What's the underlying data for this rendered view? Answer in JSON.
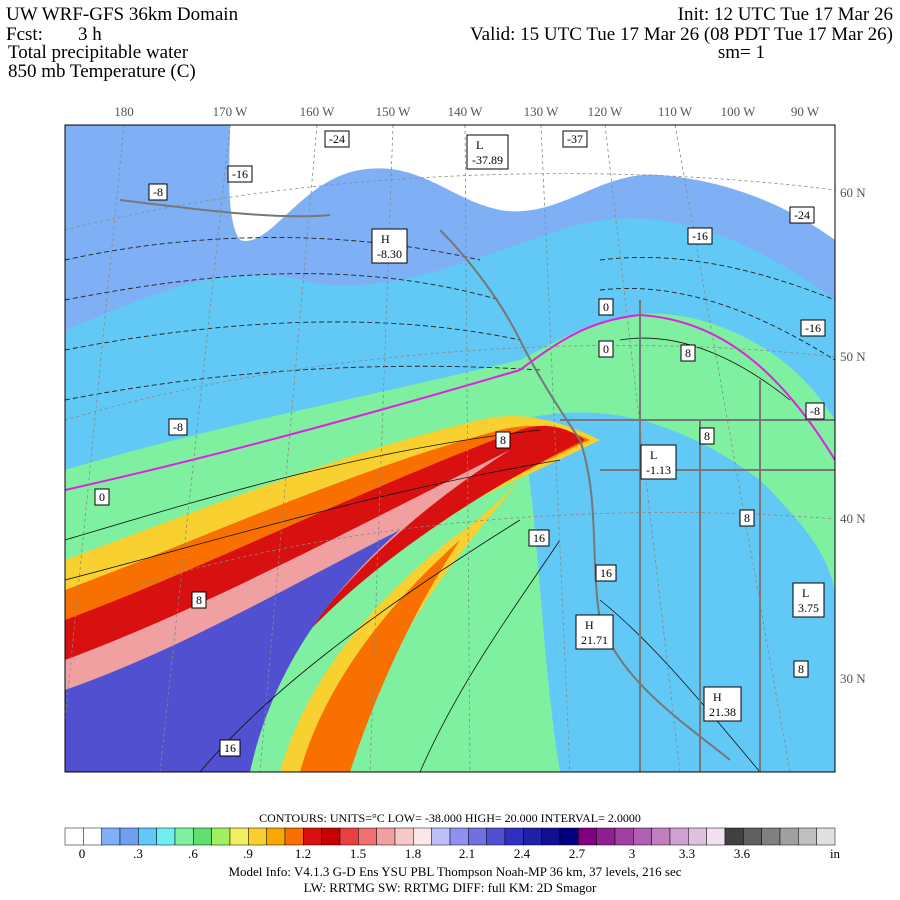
{
  "header": {
    "title": "UW WRF-GFS 36km Domain",
    "fcst_label": "Fcst:",
    "fcst_value": "3 h",
    "field1": "Total precipitable water",
    "field2": "850 mb Temperature (C)",
    "init": "Init: 12 UTC Tue 17 Mar 26",
    "valid": "Valid: 15 UTC Tue 17 Mar 26 (08 PDT Tue 17 Mar 26)",
    "smoothing": "sm= 1"
  },
  "lon_labels": [
    "180",
    "170 W",
    "160 W",
    "150 W",
    "140 W",
    "130 W",
    "120 W",
    "110 W",
    "100 W",
    "90 W"
  ],
  "lat_labels": [
    "60 N",
    "50 N",
    "40 N",
    "30 N"
  ],
  "contour_labels": [
    "-24",
    "-37",
    "-16",
    "-8",
    "-16",
    "-24",
    "-16",
    "0",
    "0",
    "8",
    "-8",
    "-8",
    "8",
    "8",
    "0",
    "8",
    "16",
    "16",
    "8",
    "8",
    "16"
  ],
  "centers": [
    {
      "kind": "L",
      "value": "-37.89"
    },
    {
      "kind": "H",
      "value": "-8.30"
    },
    {
      "kind": "L",
      "value": "-1.13"
    },
    {
      "kind": "H",
      "value": "21.71"
    },
    {
      "kind": "L",
      "value": "3.75"
    },
    {
      "kind": "H",
      "value": "21.38"
    }
  ],
  "colorbar": {
    "contours": "CONTOURS:  UNITS=°C  LOW= -38.000      HIGH=  20.000       INTERVAL=    2.0000",
    "labels": [
      "0",
      ".3",
      ".6",
      ".9",
      "1.2",
      "1.5",
      "1.8",
      "2.1",
      "2.4",
      "2.7",
      "3",
      "3.3",
      "3.6",
      "in"
    ]
  },
  "footer": {
    "line1": "Model Info: V4.1.3    G-D Ens YSU PBL  Thompson    Noah-MP  36 km,    37 levels,   216 sec",
    "line2": "LW: RRTMG SW: RRTMG    DIFF: full    KM: 2D Smagor"
  }
}
